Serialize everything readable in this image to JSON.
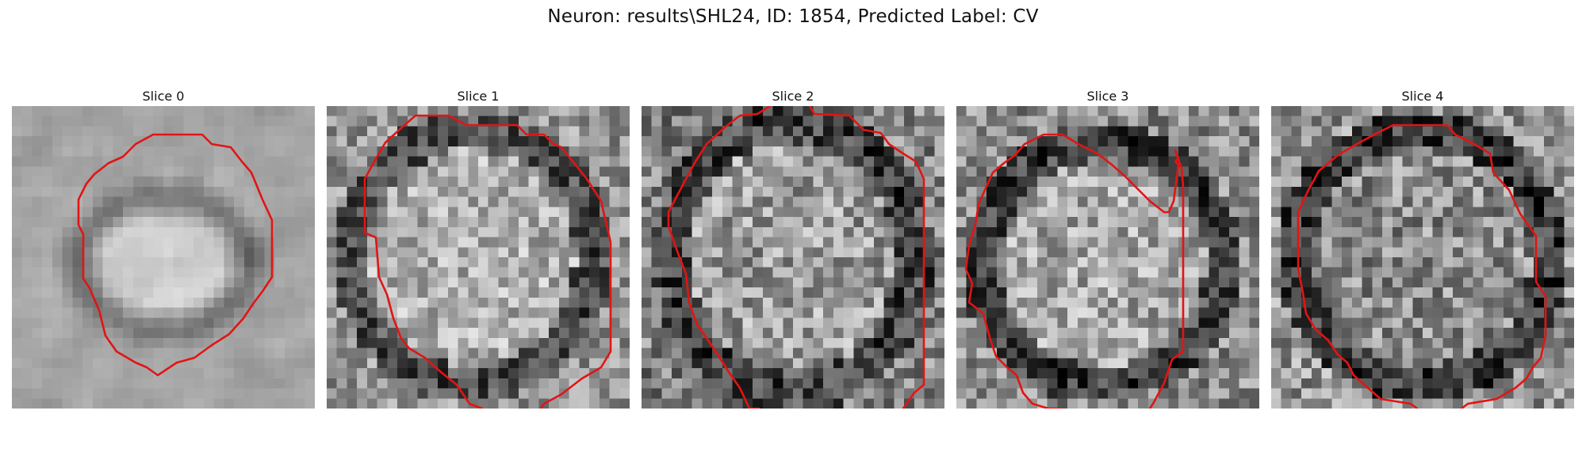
{
  "figure": {
    "title": "Neuron: results\\SHL24, ID: 1854, Predicted Label: CV",
    "contour_color": "#e31414",
    "colormap": "gray"
  },
  "panels": [
    {
      "title": "Slice 0"
    },
    {
      "title": "Slice 1"
    },
    {
      "title": "Slice 2"
    },
    {
      "title": "Slice 3"
    },
    {
      "title": "Slice 4"
    }
  ]
}
